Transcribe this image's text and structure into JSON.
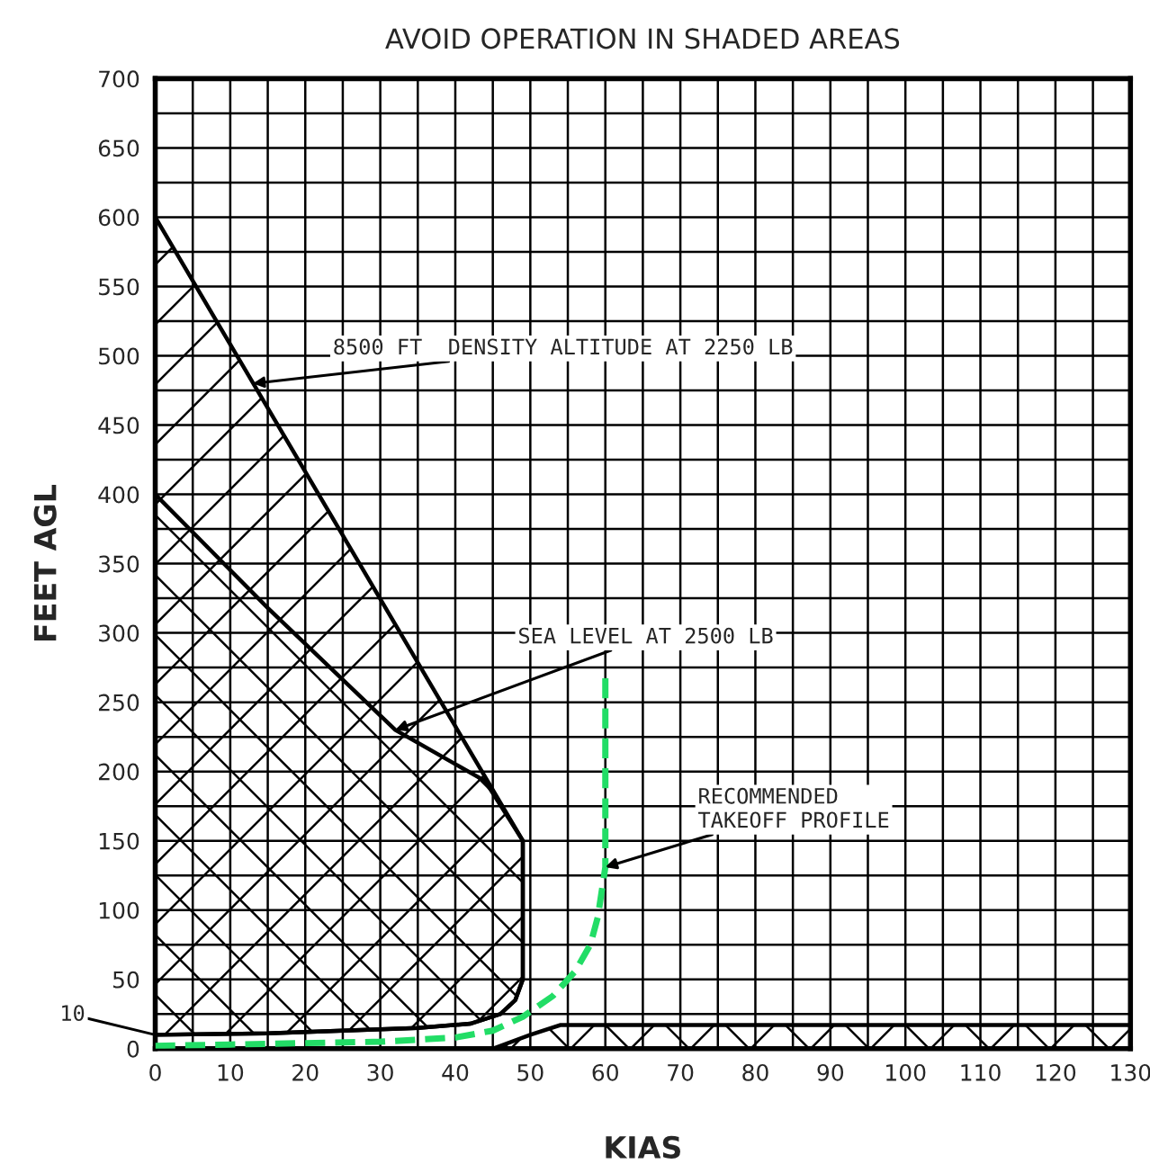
{
  "chart_data": {
    "type": "line",
    "title": "AVOID OPERATION IN SHADED AREAS",
    "xlabel": "KIAS",
    "ylabel": "FEET AGL",
    "xlim": [
      0,
      130
    ],
    "ylim": [
      0,
      700
    ],
    "xticks": [
      0,
      {
        "value": 5,
        "label": null
      },
      10,
      {
        "value": 15,
        "label": null
      },
      20,
      {
        "value": 25,
        "label": null
      },
      30,
      {
        "value": 35,
        "label": null
      },
      40,
      {
        "value": 45,
        "label": null
      },
      50,
      {
        "value": 55,
        "label": null
      },
      60,
      {
        "value": 65,
        "label": null
      },
      70,
      {
        "value": 75,
        "label": null
      },
      80,
      {
        "value": 85,
        "label": null
      },
      90,
      {
        "value": 95,
        "label": null
      },
      100,
      {
        "value": 105,
        "label": null
      },
      110,
      {
        "value": 115,
        "label": null
      },
      120,
      {
        "value": 125,
        "label": null
      },
      130
    ],
    "yticks": [
      0,
      {
        "value": 25,
        "label": null
      },
      50,
      {
        "value": 75,
        "label": null
      },
      100,
      {
        "value": 125,
        "label": null
      },
      150,
      {
        "value": 175,
        "label": null
      },
      200,
      {
        "value": 225,
        "label": null
      },
      250,
      {
        "value": 275,
        "label": null
      },
      300,
      {
        "value": 325,
        "label": null
      },
      350,
      {
        "value": 375,
        "label": null
      },
      400,
      {
        "value": 425,
        "label": null
      },
      450,
      {
        "value": 475,
        "label": null
      },
      500,
      {
        "value": 525,
        "label": null
      },
      550,
      {
        "value": 575,
        "label": null
      },
      600,
      {
        "value": 625,
        "label": null
      },
      650,
      {
        "value": 675,
        "label": null
      },
      700
    ],
    "grid": true,
    "series": [
      {
        "type": "area",
        "color": "#000000",
        "x": [
          0,
          49,
          49,
          48,
          46,
          42,
          35,
          25,
          15,
          0
        ],
        "values": [
          600,
          150,
          50,
          35,
          25,
          18,
          15,
          13,
          11,
          10
        ]
      },
      {
        "type": "area",
        "color": "#000000",
        "x": [
          0,
          15,
          32,
          44,
          49,
          49,
          48,
          46,
          42,
          35,
          25,
          15,
          0
        ],
        "values": [
          400,
          318,
          230,
          193,
          150,
          50,
          35,
          25,
          18,
          15,
          13,
          11,
          10
        ]
      },
      {
        "type": "area",
        "color": "#000000",
        "x": [
          45,
          50,
          54,
          130,
          130
        ],
        "values": [
          0,
          10,
          17,
          17,
          0
        ]
      },
      {
        "color": "#22dd66",
        "line_style": "dashed",
        "x": [
          0,
          10,
          20,
          30,
          40,
          45,
          49,
          53,
          56,
          58,
          59,
          60,
          60
        ],
        "values": [
          2,
          3,
          4,
          5,
          8,
          13,
          23,
          38,
          56,
          75,
          95,
          131,
          268
        ]
      }
    ],
    "annotations": [
      {
        "text": "8500 FT  DENSITY ALTITUDE AT 2250 LB",
        "x": 13,
        "y": 480
      },
      {
        "text": "SEA LEVEL AT 2500 LB",
        "x": 32,
        "y": 230
      },
      {
        "text": "RECOMMENDED\nTAKEOFF PROFILE",
        "x": 60,
        "y": 131
      },
      {
        "text": "10",
        "x": 0,
        "y": 10
      }
    ]
  }
}
